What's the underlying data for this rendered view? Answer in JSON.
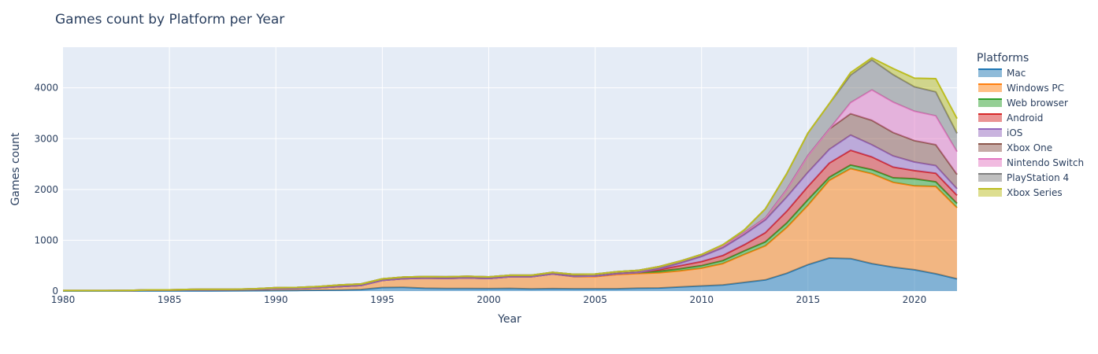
{
  "chart_data": {
    "type": "area",
    "stacked": true,
    "title": "Games count by Platform per Year",
    "xlabel": "Year",
    "ylabel": "Games count",
    "xlim": [
      1980,
      2022
    ],
    "ylim": [
      0,
      4800
    ],
    "x_ticks": [
      1980,
      1985,
      1990,
      1995,
      2000,
      2005,
      2010,
      2015,
      2020
    ],
    "y_ticks": [
      0,
      1000,
      2000,
      3000,
      4000
    ],
    "grid": true,
    "legend_title": "Platforms",
    "legend_position": "right",
    "x": [
      1980,
      1981,
      1982,
      1983,
      1984,
      1985,
      1986,
      1987,
      1988,
      1989,
      1990,
      1991,
      1992,
      1993,
      1994,
      1995,
      1996,
      1997,
      1998,
      1999,
      2000,
      2001,
      2002,
      2003,
      2004,
      2005,
      2006,
      2007,
      2008,
      2009,
      2010,
      2011,
      2012,
      2013,
      2014,
      2015,
      2016,
      2017,
      2018,
      2019,
      2020,
      2021,
      2022
    ],
    "series": [
      {
        "name": "Mac",
        "color": "#1f77b4",
        "values": [
          2,
          2,
          2,
          2,
          3,
          3,
          4,
          5,
          6,
          8,
          10,
          12,
          15,
          20,
          30,
          70,
          75,
          55,
          50,
          50,
          48,
          52,
          42,
          48,
          45,
          45,
          45,
          55,
          60,
          80,
          100,
          120,
          170,
          220,
          350,
          520,
          650,
          640,
          540,
          470,
          420,
          340,
          240
        ]
      },
      {
        "name": "Windows PC",
        "color": "#ff7f0e",
        "values": [
          5,
          5,
          5,
          8,
          15,
          15,
          20,
          20,
          20,
          25,
          40,
          40,
          50,
          70,
          80,
          140,
          170,
          200,
          200,
          210,
          200,
          230,
          240,
          290,
          240,
          240,
          280,
          290,
          300,
          320,
          350,
          420,
          550,
          670,
          900,
          1170,
          1530,
          1770,
          1770,
          1670,
          1650,
          1720,
          1400
        ]
      },
      {
        "name": "Web browser",
        "color": "#2ca02c",
        "values": [
          0,
          0,
          0,
          0,
          0,
          0,
          0,
          0,
          0,
          0,
          0,
          0,
          0,
          0,
          0,
          0,
          0,
          0,
          0,
          0,
          0,
          0,
          0,
          0,
          5,
          10,
          15,
          20,
          30,
          40,
          50,
          60,
          70,
          80,
          90,
          110,
          60,
          70,
          80,
          90,
          140,
          90,
          85
        ]
      },
      {
        "name": "Android",
        "color": "#d62728",
        "values": [
          0,
          0,
          0,
          0,
          0,
          0,
          0,
          0,
          0,
          0,
          0,
          0,
          0,
          0,
          0,
          0,
          0,
          0,
          0,
          0,
          0,
          0,
          0,
          0,
          0,
          0,
          0,
          0,
          30,
          60,
          80,
          100,
          120,
          180,
          230,
          260,
          280,
          290,
          250,
          210,
          160,
          170,
          160
        ]
      },
      {
        "name": "iOS",
        "color": "#9467bd",
        "values": [
          0,
          0,
          0,
          0,
          0,
          0,
          0,
          0,
          0,
          0,
          0,
          0,
          0,
          0,
          0,
          0,
          0,
          0,
          0,
          0,
          0,
          0,
          0,
          0,
          0,
          0,
          0,
          0,
          20,
          50,
          100,
          150,
          200,
          250,
          280,
          280,
          270,
          300,
          240,
          220,
          170,
          150,
          130
        ]
      },
      {
        "name": "Xbox One",
        "color": "#8c564b",
        "values": [
          3,
          3,
          3,
          3,
          5,
          5,
          8,
          10,
          10,
          12,
          15,
          20,
          25,
          30,
          30,
          30,
          30,
          30,
          30,
          30,
          30,
          30,
          30,
          30,
          40,
          40,
          40,
          40,
          40,
          40,
          40,
          40,
          40,
          40,
          150,
          330,
          400,
          420,
          480,
          460,
          420,
          410,
          280
        ]
      },
      {
        "name": "Nintendo Switch",
        "color": "#e377c2",
        "values": [
          0,
          0,
          0,
          0,
          0,
          0,
          0,
          0,
          0,
          0,
          0,
          0,
          0,
          0,
          0,
          0,
          0,
          0,
          0,
          0,
          0,
          0,
          0,
          0,
          0,
          0,
          0,
          0,
          0,
          0,
          0,
          0,
          0,
          0,
          0,
          0,
          0,
          220,
          600,
          600,
          580,
          570,
          450
        ]
      },
      {
        "name": "PlayStation 4",
        "color": "#7f7f7f",
        "values": [
          0,
          0,
          0,
          0,
          0,
          0,
          0,
          0,
          0,
          0,
          0,
          0,
          0,
          0,
          0,
          0,
          0,
          0,
          0,
          0,
          0,
          0,
          0,
          0,
          0,
          0,
          0,
          0,
          0,
          0,
          0,
          20,
          50,
          180,
          310,
          440,
          500,
          540,
          590,
          540,
          480,
          470,
          360
        ]
      },
      {
        "name": "Xbox Series",
        "color": "#bcbd22",
        "values": [
          0,
          0,
          0,
          0,
          0,
          0,
          0,
          0,
          0,
          0,
          0,
          0,
          0,
          0,
          0,
          0,
          0,
          0,
          0,
          0,
          0,
          0,
          0,
          0,
          0,
          0,
          0,
          0,
          0,
          0,
          0,
          0,
          0,
          0,
          0,
          0,
          0,
          50,
          40,
          120,
          170,
          260,
          290
        ]
      }
    ]
  }
}
